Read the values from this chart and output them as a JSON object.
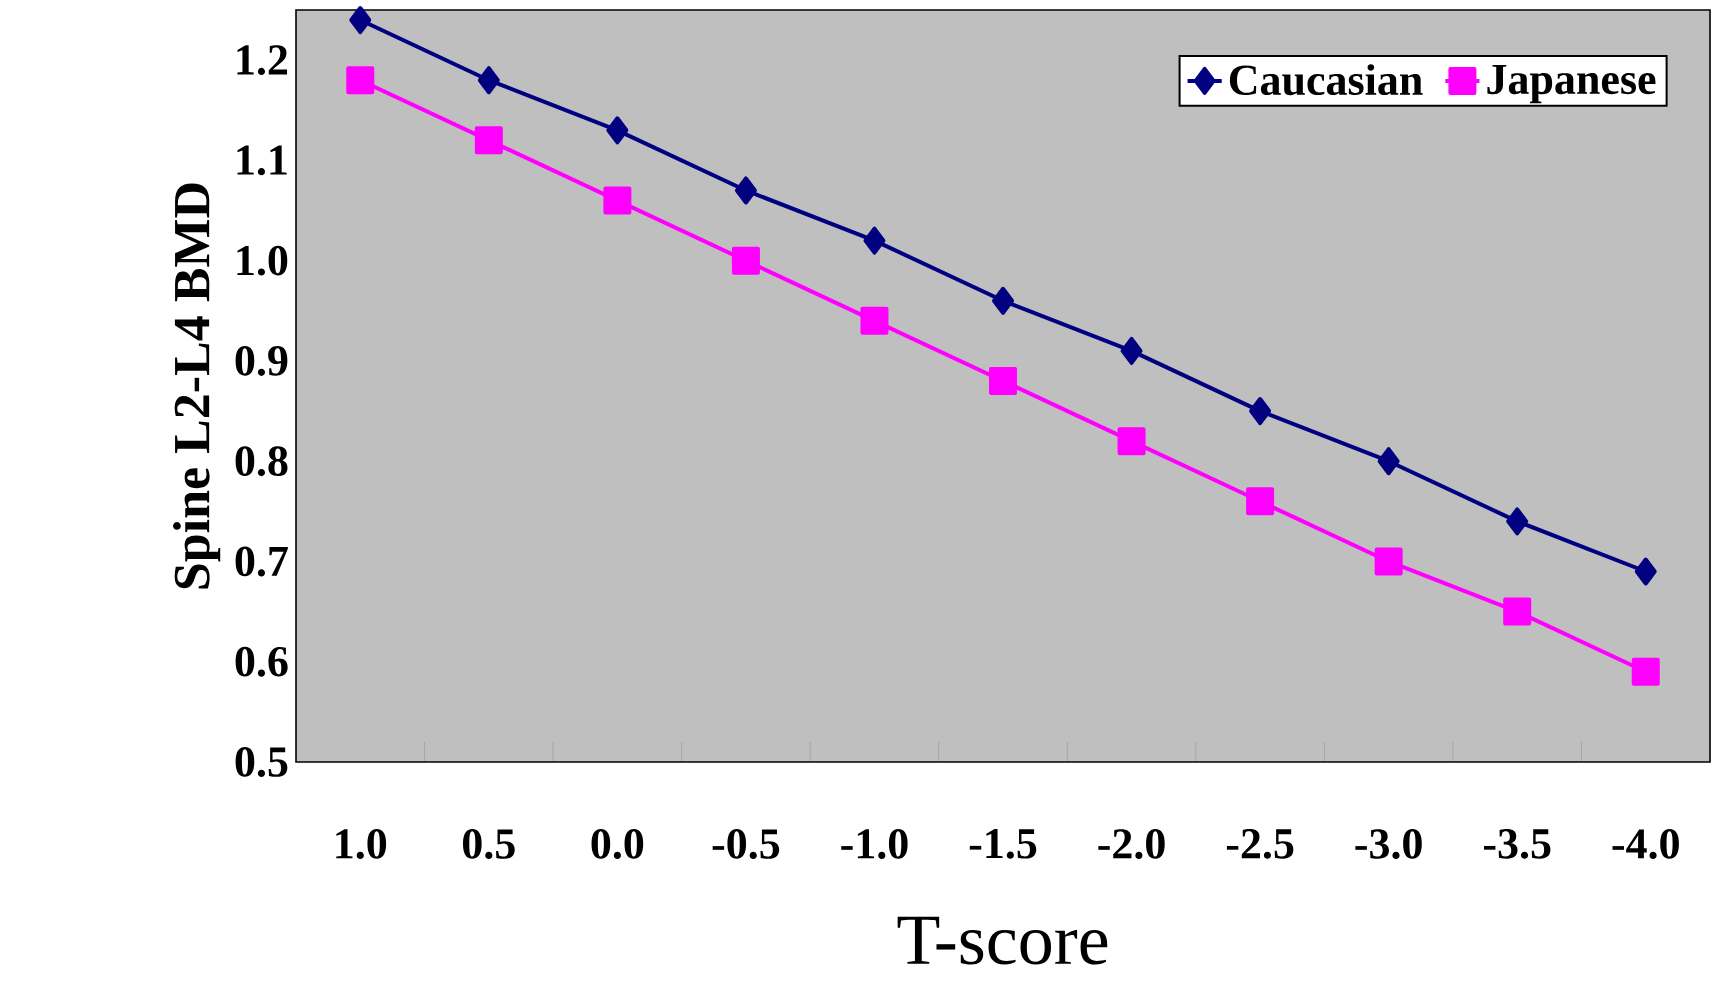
{
  "chart_data": {
    "type": "line",
    "xlabel": "T-score",
    "ylabel": "Spine L2-L4 BMD",
    "categories": [
      "1.0",
      "0.5",
      "0.0",
      "-0.5",
      "-1.0",
      "-1.5",
      "-2.0",
      "-2.5",
      "-3.0",
      "-3.5",
      "-4.0"
    ],
    "ylim": [
      0.5,
      1.25
    ],
    "yticks": [
      0.5,
      0.6,
      0.7,
      0.8,
      0.9,
      {
        "value": 1.0,
        "label": "1.0"
      },
      1.1,
      1.2
    ],
    "grid": false,
    "legend": "top right",
    "series": [
      {
        "name": "Caucasian",
        "color": "#000080",
        "marker": "diamond",
        "values": [
          1.24,
          1.18,
          1.13,
          1.07,
          1.02,
          0.96,
          0.91,
          0.85,
          0.8,
          0.74,
          0.69
        ]
      },
      {
        "name": "Japanese",
        "color": "#ff00ff",
        "marker": "square",
        "values": [
          1.18,
          1.12,
          1.06,
          1.0,
          0.94,
          0.88,
          0.82,
          0.76,
          0.7,
          0.65,
          0.59
        ]
      }
    ]
  }
}
